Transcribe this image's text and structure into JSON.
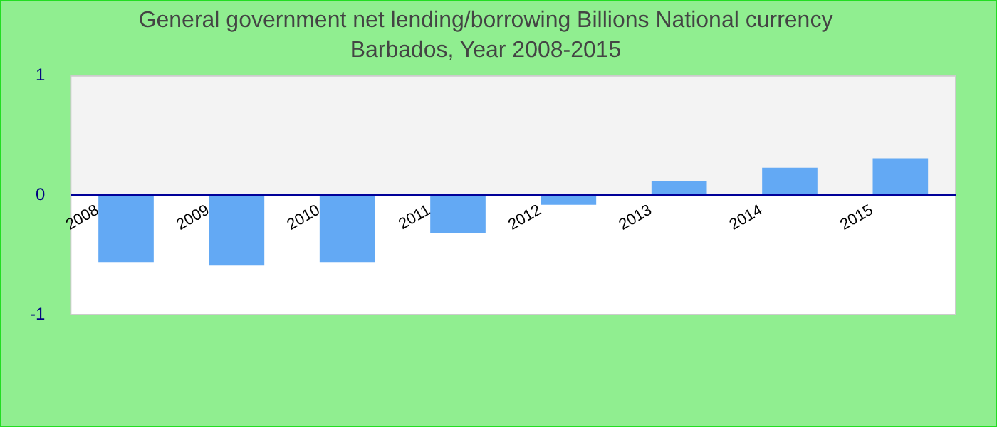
{
  "chart_data": {
    "type": "bar",
    "title": "General government net lending/borrowing Billions National currency",
    "subtitle": "Barbados, Year 2008-2015",
    "categories": [
      "2008",
      "2009",
      "2010",
      "2011",
      "2012",
      "2013",
      "2014",
      "2015"
    ],
    "values": [
      -0.56,
      -0.59,
      -0.56,
      -0.32,
      -0.08,
      0.12,
      0.23,
      0.31
    ],
    "color": "#63a9f4",
    "bands": [
      {
        "axis": "y",
        "from": 0,
        "to": 1,
        "color": "#f3f3f3"
      },
      {
        "axis": "y",
        "from": -1,
        "to": 0,
        "color": "#ffffff"
      }
    ],
    "ylim": [
      -1,
      1
    ],
    "yticks": [
      -1,
      0,
      1
    ],
    "grid": false,
    "legend": false
  }
}
